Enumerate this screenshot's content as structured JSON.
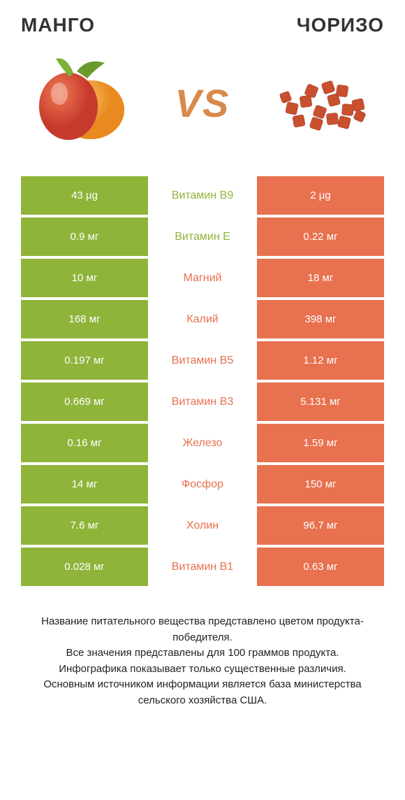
{
  "colors": {
    "left": "#8fb43a",
    "right": "#e8714f",
    "vs": "#d88a4a",
    "text": "#333333"
  },
  "header": {
    "left_title": "MАНГО",
    "right_title": "ЧОРИЗО",
    "vs_label": "VS"
  },
  "rows": [
    {
      "left": "43 µg",
      "mid": "Витамин B9",
      "right": "2 µg",
      "winner": "left"
    },
    {
      "left": "0.9 мг",
      "mid": "Витамин E",
      "right": "0.22 мг",
      "winner": "left"
    },
    {
      "left": "10 мг",
      "mid": "Магний",
      "right": "18 мг",
      "winner": "right"
    },
    {
      "left": "168 мг",
      "mid": "Калий",
      "right": "398 мг",
      "winner": "right"
    },
    {
      "left": "0.197 мг",
      "mid": "Витамин B5",
      "right": "1.12 мг",
      "winner": "right"
    },
    {
      "left": "0.669 мг",
      "mid": "Витамин B3",
      "right": "5.131 мг",
      "winner": "right"
    },
    {
      "left": "0.16 мг",
      "mid": "Железо",
      "right": "1.59 мг",
      "winner": "right"
    },
    {
      "left": "14 мг",
      "mid": "Фосфор",
      "right": "150 мг",
      "winner": "right"
    },
    {
      "left": "7.6 мг",
      "mid": "Холин",
      "right": "96.7 мг",
      "winner": "right"
    },
    {
      "left": "0.028 мг",
      "mid": "Витамин B1",
      "right": "0.63 мг",
      "winner": "right"
    }
  ],
  "footer": {
    "line1": "Название питательного вещества представлено цветом продукта-победителя.",
    "line2": "Все значения представлены для 100 граммов продукта.",
    "line3": "Инфографика показывает только существенные различия.",
    "line4": "Основным источником информации является база министерства сельского хозяйства США."
  }
}
